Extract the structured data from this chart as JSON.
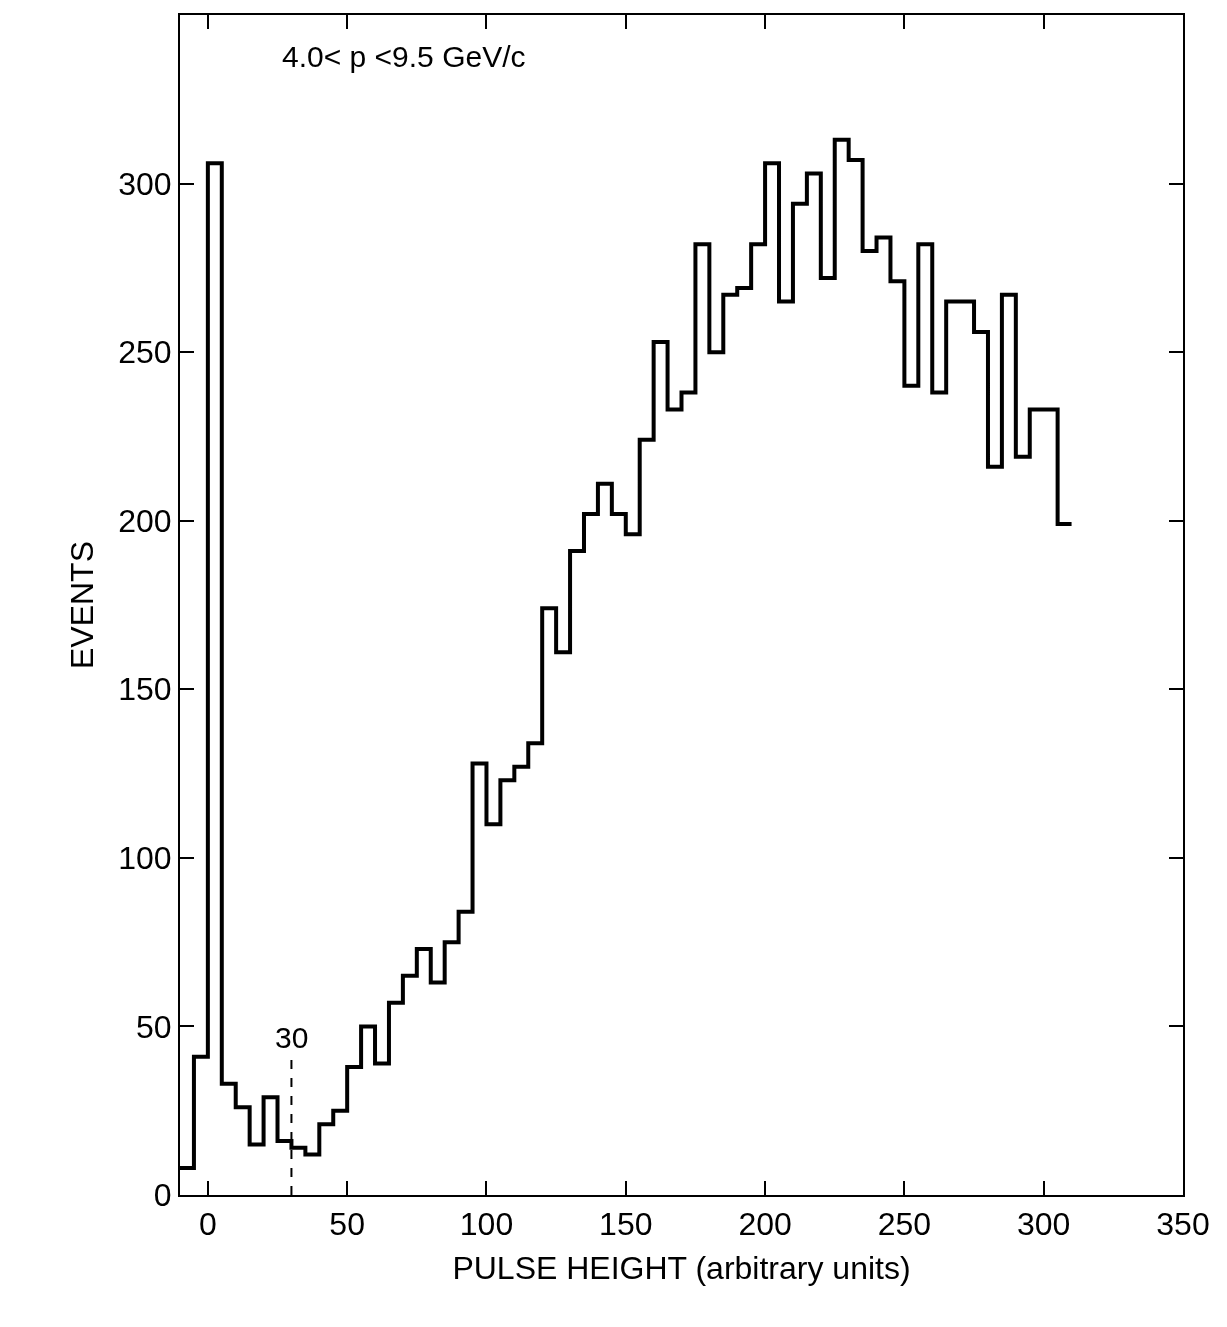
{
  "chart_data": {
    "type": "histogram",
    "xlabel": "PULSE HEIGHT (arbitrary units)",
    "ylabel": "EVENTS",
    "annotations": [
      "4.0< p <9.5 GeV/c"
    ],
    "bins": [
      -10,
      -5,
      0,
      5,
      10,
      15,
      20,
      25,
      30,
      35,
      40,
      45,
      50,
      55,
      60,
      65,
      70,
      75,
      80,
      85,
      90,
      95,
      100,
      105,
      110,
      115,
      120,
      125,
      130,
      135,
      140,
      145,
      150,
      155,
      160,
      165,
      170,
      175,
      180,
      185,
      190,
      195,
      200,
      205,
      210,
      215,
      220,
      225,
      230,
      235,
      240,
      245,
      250,
      255,
      260,
      265,
      270,
      275,
      280,
      285,
      290,
      295,
      300,
      305,
      310
    ],
    "values": [
      8,
      41,
      306,
      33,
      26,
      15,
      29,
      16,
      14,
      12,
      21,
      25,
      38,
      50,
      39,
      57,
      65,
      73,
      63,
      75,
      84,
      128,
      110,
      123,
      127,
      134,
      174,
      161,
      191,
      202,
      211,
      202,
      196,
      224,
      253,
      233,
      238,
      282,
      250,
      267,
      269,
      282,
      306,
      265,
      294,
      303,
      272,
      313,
      307,
      280,
      284,
      271,
      240,
      282,
      238,
      265,
      265,
      256,
      216,
      267,
      219,
      233,
      233,
      199
    ],
    "color": "#000000",
    "xlim": [
      -10,
      350
    ],
    "ylim": [
      0,
      350
    ],
    "xticks": [
      0,
      50,
      100,
      150,
      200,
      250,
      300,
      350
    ],
    "yticks": [
      0,
      50,
      100,
      150,
      200,
      250,
      300
    ],
    "ref_lines": [
      {
        "axis": "x",
        "value": 30,
        "label": "30",
        "line_style": "dashed"
      }
    ]
  }
}
